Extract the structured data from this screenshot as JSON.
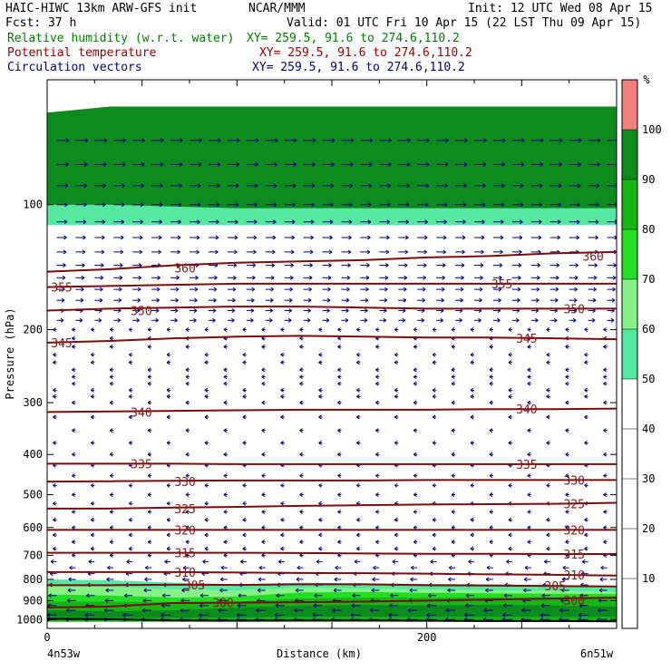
{
  "header": {
    "title": "HAIC-HIWC 13km ARW-GFS init",
    "org": "NCAR/MMM",
    "init": "Init: 12 UTC Wed 08 Apr 15",
    "fcst": "Fcst:   37 h",
    "valid": "Valid: 01 UTC Fri 10 Apr 15 (22 LST Thu 09 Apr 15)",
    "fields": [
      {
        "name": "Relative humidity (w.r.t. water)",
        "xy": "XY= 259.5, 91.6 to 274.6,110.2",
        "color": "#008000"
      },
      {
        "name": "Potential temperature",
        "xy": "XY= 259.5, 91.6 to 274.6,110.2",
        "color": "#a00000"
      },
      {
        "name": "Circulation vectors",
        "xy": "XY= 259.5, 91.6 to 274.6,110.2",
        "color": "#000080"
      }
    ]
  },
  "chart_data": {
    "type": "cross-section",
    "xlabel": "Distance (km)",
    "ylabel": "Pressure (hPa)",
    "xlim": [
      0,
      300
    ],
    "ylim": [
      1050,
      50
    ],
    "y_scale": "log-pressure",
    "x_ticks": [
      "0",
      "200"
    ],
    "x_tick_values": [
      0,
      200
    ],
    "y_ticks": [
      100,
      200,
      300,
      400,
      500,
      600,
      700,
      800,
      900,
      1000
    ],
    "endpoints": {
      "left": "4n53w",
      "right": "6n51w"
    },
    "colorbar": {
      "unit": "%",
      "ticks": [
        10,
        20,
        30,
        40,
        50,
        60,
        70,
        80,
        90,
        100
      ],
      "bands": [
        {
          "from": 0,
          "to": 50,
          "color": "#ffffff"
        },
        {
          "from": 50,
          "to": 60,
          "color": "#55e8a0"
        },
        {
          "from": 60,
          "to": 70,
          "color": "#88f288"
        },
        {
          "from": 70,
          "to": 80,
          "color": "#22dd22"
        },
        {
          "from": 80,
          "to": 90,
          "color": "#15b515"
        },
        {
          "from": 90,
          "to": 100,
          "color": "#0d8a1d"
        },
        {
          "from": 100,
          "to": 110,
          "color": "#f08080"
        }
      ]
    },
    "theta_contours": [
      {
        "value": 300,
        "label": "300",
        "p": [
          935,
          930,
          912,
          910,
          908,
          905,
          900,
          895,
          890,
          885
        ]
      },
      {
        "value": 305,
        "label": "305",
        "p": [
          826,
          826,
          824,
          825,
          822,
          822,
          826,
          828,
          830,
          832
        ]
      },
      {
        "value": 310,
        "label": "310",
        "p": [
          768,
          768,
          768,
          770,
          772,
          773,
          775,
          778,
          780,
          783
        ]
      },
      {
        "value": 315,
        "label": "315",
        "p": [
          690,
          690,
          690,
          690,
          691,
          693,
          694,
          694,
          695,
          695
        ]
      },
      {
        "value": 320,
        "label": "320",
        "p": [
          608,
          608,
          608,
          608,
          608,
          608,
          608,
          608,
          608,
          608
        ]
      },
      {
        "value": 325,
        "label": "325",
        "p": [
          540,
          540,
          537,
          535,
          532,
          530,
          528,
          527,
          526,
          523
        ]
      },
      {
        "value": 330,
        "label": "330",
        "p": [
          465,
          464,
          463,
          462,
          462,
          462,
          461,
          461,
          461,
          461
        ]
      },
      {
        "value": 335,
        "label": "335",
        "p": [
          421,
          421,
          421,
          422,
          422,
          422,
          422,
          422,
          422,
          422
        ]
      },
      {
        "value": 340,
        "label": "340",
        "p": [
          316,
          315,
          314,
          313,
          312,
          312,
          312,
          311,
          311,
          310
        ]
      },
      {
        "value": 345,
        "label": "345",
        "p": [
          215,
          213,
          210,
          208,
          207,
          208,
          209,
          209,
          210,
          211
        ]
      },
      {
        "value": 350,
        "label": "350",
        "p": [
          180,
          178,
          177,
          176,
          176,
          177,
          178,
          178,
          178,
          178
        ]
      },
      {
        "value": 355,
        "label": "355",
        "p": [
          158,
          157,
          156,
          155,
          155,
          155,
          155,
          155,
          155,
          155
        ]
      },
      {
        "value": 360,
        "label": "360",
        "p": [
          145,
          143,
          140,
          138,
          137,
          136,
          134,
          133,
          131,
          130
        ]
      }
    ],
    "contour_x": [
      0,
      33.3,
      66.7,
      100,
      133.3,
      166.7,
      200,
      233.3,
      266.7,
      300
    ],
    "theta_labels": [
      {
        "value": "300",
        "x": 85,
        "p": 910
      },
      {
        "value": "300",
        "x": 270,
        "p": 898
      },
      {
        "value": "305",
        "x": 70,
        "p": 824
      },
      {
        "value": "305",
        "x": 260,
        "p": 828
      },
      {
        "value": "310",
        "x": 65,
        "p": 768
      },
      {
        "value": "310",
        "x": 270,
        "p": 780
      },
      {
        "value": "315",
        "x": 65,
        "p": 690
      },
      {
        "value": "315",
        "x": 270,
        "p": 695
      },
      {
        "value": "320",
        "x": 65,
        "p": 608
      },
      {
        "value": "320",
        "x": 270,
        "p": 608
      },
      {
        "value": "325",
        "x": 65,
        "p": 540
      },
      {
        "value": "325",
        "x": 270,
        "p": 526
      },
      {
        "value": "330",
        "x": 65,
        "p": 465
      },
      {
        "value": "330",
        "x": 270,
        "p": 461
      },
      {
        "value": "335",
        "x": 42,
        "p": 421
      },
      {
        "value": "335",
        "x": 245,
        "p": 422
      },
      {
        "value": "340",
        "x": 42,
        "p": 316
      },
      {
        "value": "340",
        "x": 245,
        "p": 311
      },
      {
        "value": "345",
        "x": 0,
        "p": 215
      },
      {
        "value": "345",
        "x": 245,
        "p": 210
      },
      {
        "value": "350",
        "x": 42,
        "p": 180
      },
      {
        "value": "350",
        "x": 270,
        "p": 178
      },
      {
        "value": "355",
        "x": 0,
        "p": 158
      },
      {
        "value": "355",
        "x": 232,
        "p": 155
      },
      {
        "value": "360",
        "x": 65,
        "p": 142
      },
      {
        "value": "360",
        "x": 280,
        "p": 133
      }
    ],
    "rh_regions": [
      {
        "band": "90-100",
        "top": [
          60,
          58,
          58,
          58,
          58,
          58,
          58,
          58,
          58,
          58
        ],
        "bottom": [
          105,
          105,
          105,
          105,
          105,
          105,
          105,
          105,
          105,
          105
        ]
      },
      {
        "band": "50-60",
        "top": [
          100,
          100,
          101,
          102,
          102,
          102,
          102,
          102,
          102,
          102
        ],
        "bottom": [
          112,
          112,
          112,
          112,
          112,
          112,
          112,
          112,
          112,
          112
        ]
      },
      {
        "band": "50-60",
        "top": [
          800,
          804,
          815,
          822,
          815,
          818,
          820,
          822,
          826,
          830
        ],
        "bottom": [
          1000,
          1000,
          1000,
          1000,
          1000,
          1000,
          1000,
          1000,
          1000,
          1000
        ]
      },
      {
        "band": "60-70",
        "top": [
          830,
          834,
          845,
          850,
          838,
          842,
          846,
          850,
          852,
          856
        ],
        "bottom": [
          1005,
          1005,
          1005,
          1005,
          1005,
          1005,
          1005,
          1005,
          1005,
          1005
        ]
      },
      {
        "band": "70-80",
        "top": [
          870,
          875,
          885,
          880,
          860,
          858,
          862,
          864,
          866,
          868
        ],
        "bottom": [
          1012,
          1012,
          1012,
          1012,
          1012,
          1012,
          1012,
          1012,
          1012,
          1012
        ]
      },
      {
        "band": "80-90",
        "top": [
          905,
          905,
          908,
          905,
          890,
          885,
          885,
          884,
          884,
          884
        ],
        "bottom": [
          1012,
          1012,
          1012,
          1012,
          1012,
          1012,
          1012,
          1012,
          1012,
          1012
        ]
      },
      {
        "band": "90-100",
        "top": [
          950,
          955,
          950,
          935,
          925,
          922,
          925,
          922,
          925,
          930
        ],
        "bottom": [
          985,
          990,
          990,
          988,
          985,
          984,
          985,
          984,
          985,
          985
        ]
      }
    ],
    "surface_p": [
      995,
      998,
      1005,
      1006,
      1005,
      1005,
      1006,
      1008,
      1008,
      1010
    ],
    "wind_pattern": {
      "upper_levels": "westerly (pointing right) above ~200 hPa",
      "lower_levels": "easterly (pointing left) below ~200 hPa"
    }
  }
}
